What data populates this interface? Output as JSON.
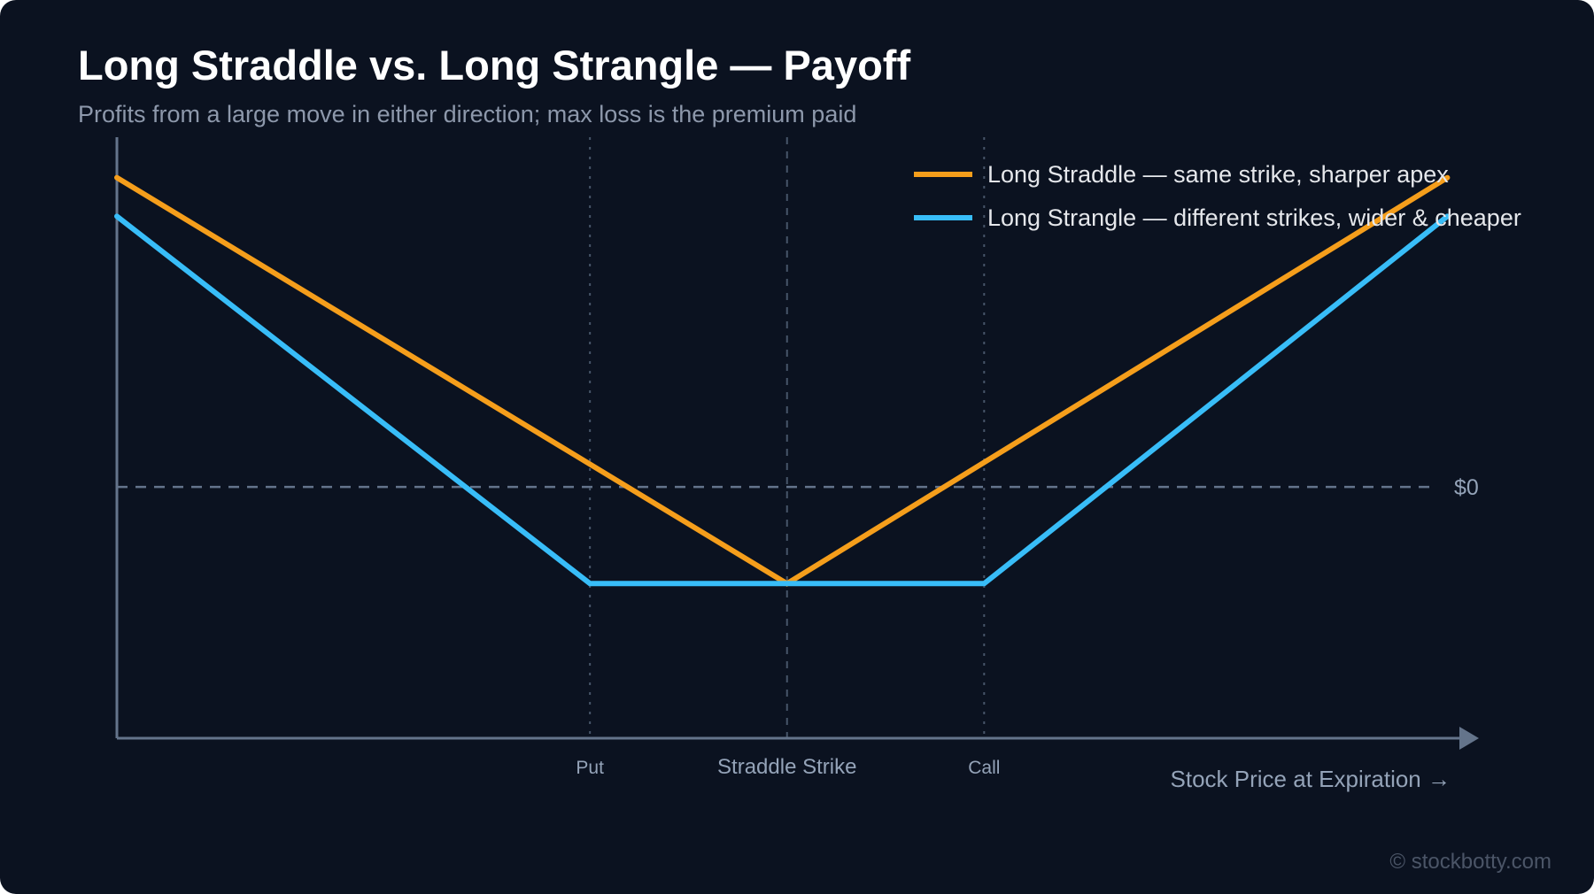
{
  "page": {
    "title": "Long Straddle vs. Long Strangle — Payoff",
    "subtitle": "Profits from a large move in either direction; max loss is the premium paid",
    "watermark": "© stockbotty.com"
  },
  "chart_data": {
    "type": "line",
    "title": "Long Straddle vs. Long Strangle — Payoff",
    "subtitle": "Profits from a large move in either direction; max loss is the premium paid",
    "xlabel": "Stock Price at Expiration →",
    "ylabel": "",
    "xlim": [
      0,
      140
    ],
    "ylim": [
      -26,
      36
    ],
    "grid": false,
    "legend_position": "top-right",
    "x_tick_labels": [
      {
        "x": 48,
        "label": "Put"
      },
      {
        "x": 68,
        "label": "Straddle Strike"
      },
      {
        "x": 88,
        "label": "Call"
      }
    ],
    "reference_lines": [
      {
        "axis": "y",
        "value": 0,
        "label": "$0",
        "style": "dashed"
      },
      {
        "axis": "x",
        "value": 48,
        "style": "dotted"
      },
      {
        "axis": "x",
        "value": 68,
        "style": "dashed"
      },
      {
        "axis": "x",
        "value": 88,
        "style": "dotted"
      }
    ],
    "series": [
      {
        "name": "Long Straddle — same strike, sharper apex",
        "color": "#f59e1b",
        "x": [
          0,
          68,
          135
        ],
        "y": [
          32,
          -10,
          32
        ]
      },
      {
        "name": "Long Strangle — different strikes, wider & cheaper",
        "color": "#38bdf8",
        "x": [
          0,
          48,
          88,
          135
        ],
        "y": [
          28,
          -10,
          -10,
          28
        ]
      }
    ],
    "colors": {
      "background": "#0b1220",
      "axis": "#64748b",
      "zero_line": "#64748b",
      "guide_line": "#475569",
      "tick_label": "#94a3b8",
      "legend_text": "#e5e7eb"
    }
  }
}
